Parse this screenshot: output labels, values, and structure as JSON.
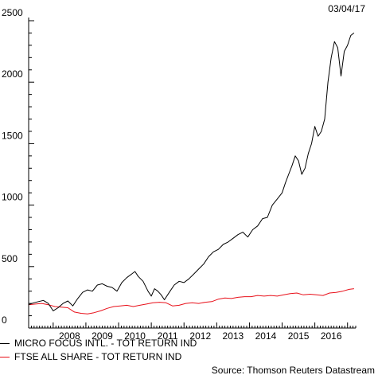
{
  "date_stamp": "03/04/17",
  "source": "Source: Thomson Reuters Datastream",
  "chart_data": {
    "type": "line",
    "ylim": [
      0,
      2500
    ],
    "y_ticks": [
      0,
      500,
      1000,
      1500,
      2000,
      2500
    ],
    "x_tick_labels": [
      "2008",
      "2009",
      "2010",
      "2011",
      "2012",
      "2013",
      "2014",
      "2015",
      "2016"
    ],
    "xlim": [
      2007.25,
      2017.25
    ],
    "grid": false,
    "legend_position": "bottom-left",
    "colors": {
      "series_1": "#000000",
      "series_2": "#e8101a"
    },
    "series": [
      {
        "name": "MICRO FOCUS INTL. - TOT RETURN IND",
        "color": "#000000",
        "x": [
          2007.25,
          2007.4,
          2007.55,
          2007.7,
          2007.85,
          2008.0,
          2008.15,
          2008.3,
          2008.45,
          2008.6,
          2008.75,
          2008.9,
          2009.05,
          2009.2,
          2009.35,
          2009.5,
          2009.65,
          2009.8,
          2009.95,
          2010.1,
          2010.25,
          2010.4,
          2010.5,
          2010.6,
          2010.75,
          2010.9,
          2011.0,
          2011.1,
          2011.2,
          2011.3,
          2011.4,
          2011.55,
          2011.7,
          2011.85,
          2012.0,
          2012.15,
          2012.3,
          2012.45,
          2012.6,
          2012.75,
          2012.9,
          2013.05,
          2013.2,
          2013.35,
          2013.5,
          2013.65,
          2013.8,
          2013.95,
          2014.1,
          2014.25,
          2014.4,
          2014.55,
          2014.7,
          2014.85,
          2015.0,
          2015.1,
          2015.2,
          2015.3,
          2015.4,
          2015.5,
          2015.6,
          2015.7,
          2015.8,
          2015.9,
          2016.0,
          2016.1,
          2016.2,
          2016.3,
          2016.4,
          2016.5,
          2016.6,
          2016.7,
          2016.8,
          2016.9,
          2017.0,
          2017.1,
          2017.2
        ],
        "values": [
          190,
          205,
          215,
          225,
          200,
          140,
          165,
          200,
          220,
          180,
          240,
          290,
          310,
          300,
          350,
          360,
          340,
          330,
          300,
          370,
          410,
          440,
          460,
          420,
          380,
          300,
          260,
          320,
          300,
          270,
          230,
          290,
          350,
          380,
          370,
          400,
          440,
          480,
          520,
          580,
          620,
          640,
          680,
          700,
          730,
          760,
          780,
          740,
          800,
          830,
          890,
          900,
          1000,
          1050,
          1100,
          1180,
          1250,
          1320,
          1400,
          1360,
          1250,
          1300,
          1420,
          1500,
          1640,
          1560,
          1600,
          1700,
          2000,
          2200,
          2330,
          2280,
          2050,
          2250,
          2300,
          2380,
          2400
        ]
      },
      {
        "name": "FTSE ALL SHARE - TOT RETURN IND",
        "color": "#e8101a",
        "x": [
          2007.25,
          2007.45,
          2007.65,
          2007.85,
          2008.05,
          2008.25,
          2008.45,
          2008.65,
          2008.85,
          2009.05,
          2009.25,
          2009.45,
          2009.65,
          2009.85,
          2010.05,
          2010.25,
          2010.45,
          2010.65,
          2010.85,
          2011.05,
          2011.25,
          2011.45,
          2011.65,
          2011.85,
          2012.05,
          2012.25,
          2012.45,
          2012.65,
          2012.85,
          2013.05,
          2013.25,
          2013.45,
          2013.65,
          2013.85,
          2014.05,
          2014.25,
          2014.45,
          2014.65,
          2014.85,
          2015.05,
          2015.25,
          2015.45,
          2015.65,
          2015.85,
          2016.05,
          2016.25,
          2016.45,
          2016.65,
          2016.85,
          2017.05,
          2017.2
        ],
        "values": [
          190,
          195,
          200,
          190,
          175,
          170,
          165,
          130,
          120,
          115,
          125,
          140,
          160,
          175,
          180,
          185,
          175,
          185,
          195,
          205,
          210,
          205,
          180,
          185,
          200,
          205,
          200,
          210,
          215,
          235,
          245,
          240,
          250,
          255,
          255,
          265,
          260,
          265,
          260,
          270,
          280,
          285,
          270,
          275,
          270,
          265,
          285,
          290,
          300,
          315,
          320
        ]
      }
    ]
  }
}
